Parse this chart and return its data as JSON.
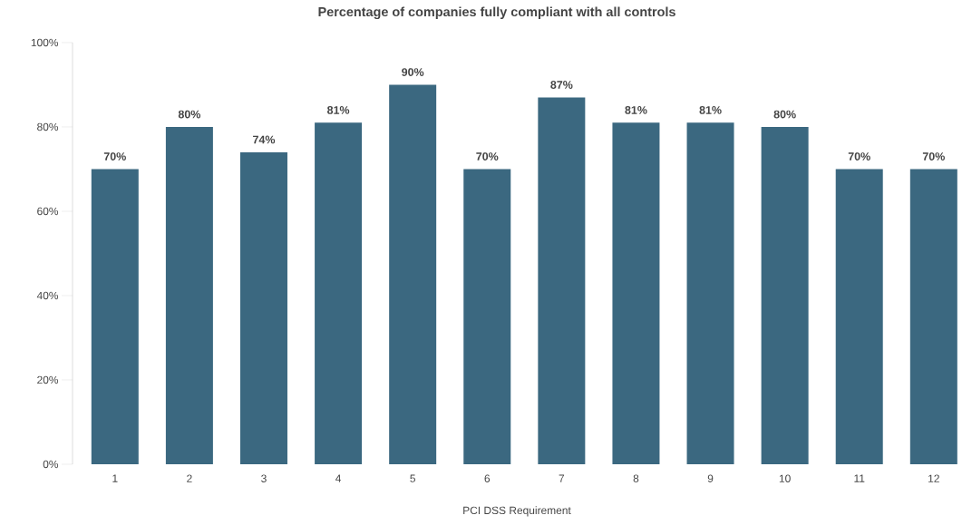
{
  "chart_data": {
    "type": "bar",
    "title": "Percentage of companies fully compliant with all controls",
    "xlabel": "PCI DSS Requirement",
    "categories": [
      "1",
      "2",
      "3",
      "4",
      "5",
      "6",
      "7",
      "8",
      "9",
      "10",
      "11",
      "12"
    ],
    "values": [
      70,
      80,
      74,
      81,
      90,
      70,
      87,
      81,
      81,
      80,
      70,
      70
    ],
    "value_labels": [
      "70%",
      "80%",
      "74%",
      "81%",
      "90%",
      "70%",
      "87%",
      "81%",
      "81%",
      "80%",
      "70%",
      "70%"
    ],
    "color": "#3b6880",
    "ylim": [
      0,
      100
    ],
    "yticks": [
      {
        "value": 0,
        "label": "0%"
      },
      {
        "value": 20,
        "label": "20%"
      },
      {
        "value": 40,
        "label": "40%"
      },
      {
        "value": 60,
        "label": "60%"
      },
      {
        "value": 80,
        "label": "80%"
      },
      {
        "value": 100,
        "label": "100%"
      }
    ],
    "grid": false
  }
}
